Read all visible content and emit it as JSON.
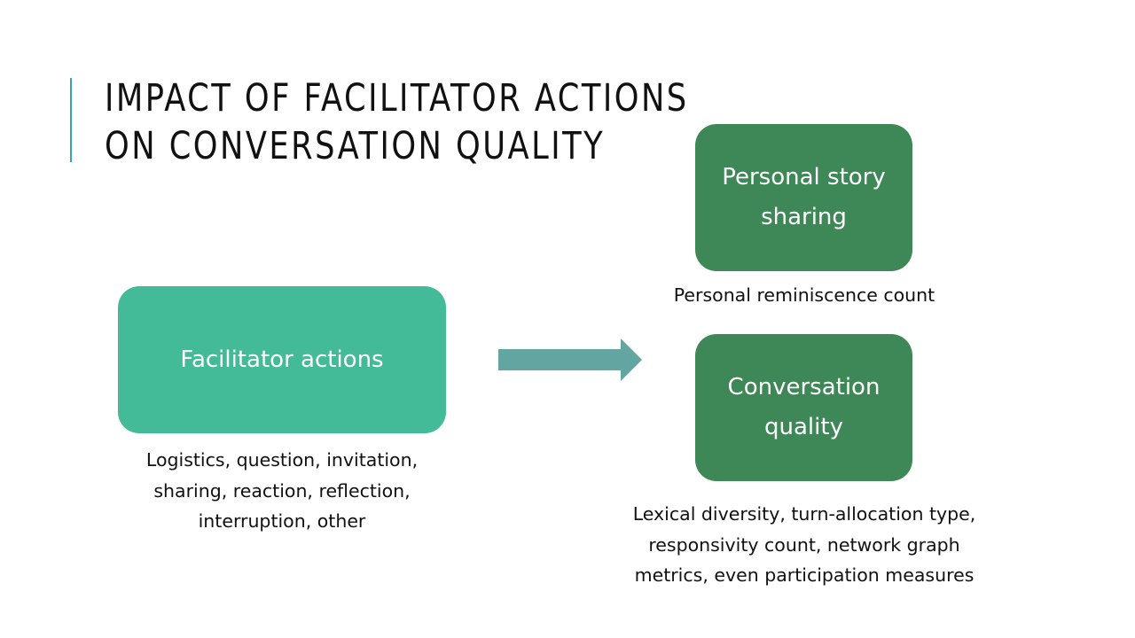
{
  "title": {
    "line1": "Impact of facilitator actions",
    "line2": "on conversation quality"
  },
  "nodes": {
    "actions": {
      "label": "Facilitator actions",
      "caption": [
        "Logistics, question, invitation,",
        "sharing, reaction, reflection,",
        "interruption, other"
      ]
    },
    "story": {
      "label_lines": [
        "Personal story",
        "sharing"
      ],
      "caption": [
        "Personal reminiscence count"
      ]
    },
    "quality": {
      "label_lines": [
        "Conversation",
        "quality"
      ],
      "caption": [
        "Lexical diversity, turn-allocation type,",
        "responsivity count, network graph",
        "metrics, even participation measures"
      ]
    }
  },
  "colors": {
    "accent_bar": "#3aa3b8",
    "actions_box": "#43bb99",
    "outcome_box": "#3e8756",
    "arrow": "#63a5a0"
  }
}
